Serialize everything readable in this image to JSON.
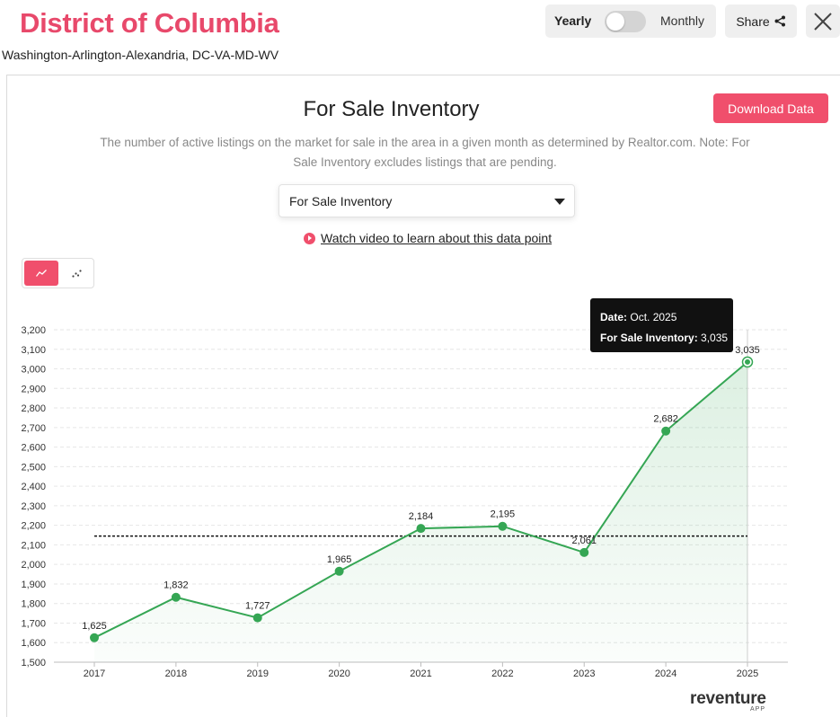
{
  "header": {
    "title": "District of Columbia",
    "subtitle": "Washington-Arlington-Alexandria, DC-VA-MD-WV",
    "toggle_yearly": "Yearly",
    "toggle_monthly": "Monthly",
    "share_label": "Share"
  },
  "panel": {
    "heading": "For Sale Inventory",
    "download_label": "Download Data",
    "description": "The number of active listings on the market for sale in the area in a given month as determined by Realtor.com. Note: For Sale Inventory excludes listings that are pending.",
    "select_value": "For Sale Inventory",
    "video_link": "Watch video to learn about this data point"
  },
  "tooltip": {
    "date_label": "Date:",
    "date_value": "Oct. 2025",
    "metric_label": "For Sale Inventory:",
    "metric_value": "3,035"
  },
  "brand": {
    "name": "reventure",
    "sub": "APP"
  },
  "colors": {
    "accent": "#f04f6c",
    "title": "#e8496b",
    "series": "#35a654"
  },
  "chart_data": {
    "type": "area",
    "title": "For Sale Inventory",
    "x": [
      "2017",
      "2018",
      "2019",
      "2020",
      "2021",
      "2022",
      "2023",
      "2024",
      "2025"
    ],
    "series": [
      {
        "name": "For Sale Inventory",
        "values": [
          1625,
          1832,
          1727,
          1965,
          2184,
          2195,
          2061,
          2682,
          3035
        ],
        "labels": [
          "1,625",
          "1,832",
          "1,727",
          "1,965",
          "2,184",
          "2,195",
          "2,061",
          "2,682",
          "3,035"
        ]
      }
    ],
    "average_line": 2145,
    "ylim": [
      1500,
      3200
    ],
    "yticks": [
      1500,
      1600,
      1700,
      1800,
      1900,
      2000,
      2100,
      2200,
      2300,
      2400,
      2500,
      2600,
      2700,
      2800,
      2900,
      3000,
      3100,
      3200
    ],
    "ytick_labels": [
      "1,500",
      "1,600",
      "1,700",
      "1,800",
      "1,900",
      "2,000",
      "2,100",
      "2,200",
      "2,300",
      "2,400",
      "2,500",
      "2,600",
      "2,700",
      "2,800",
      "2,900",
      "3,000",
      "3,100",
      "3,200"
    ],
    "grid": true,
    "xlabel": "",
    "ylabel": ""
  }
}
